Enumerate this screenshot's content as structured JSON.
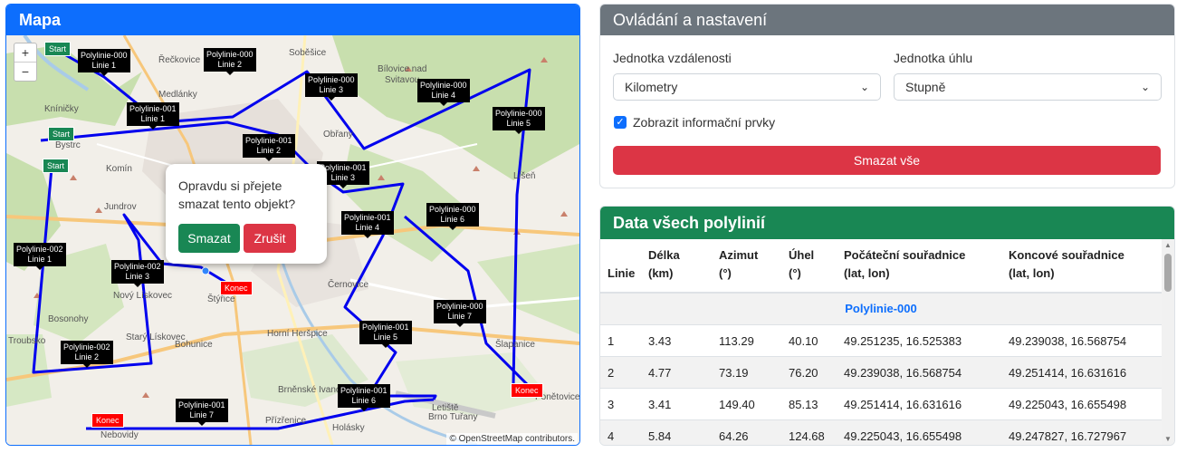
{
  "map": {
    "title": "Mapa",
    "zoom_in": "+",
    "zoom_out": "−",
    "attribution": "© OpenStreetMap contributors.",
    "places": [
      "Řečkovice",
      "Soběšice",
      "Bílovice nad Svitavou",
      "Medlánky",
      "Kníničky",
      "Bystrc",
      "Komín",
      "Jundrov",
      "Obřany",
      "Líšeň",
      "Nový Lískovec",
      "Bosonohy",
      "Troubsko",
      "Bohunice",
      "Horní Heršpice",
      "Černovice",
      "Šlapanice",
      "Brněnské Ivanovice",
      "Přízřenice",
      "Holásky",
      "Nebovidy",
      "Ponětovice",
      "Štýřice",
      "Starý Lískovec",
      "Letiště Brno Tuřany"
    ],
    "labels": [
      {
        "l1": "Polylinie-000",
        "l2": "Linie 1"
      },
      {
        "l1": "Polylinie-000",
        "l2": "Linie 2"
      },
      {
        "l1": "Polylinie-000",
        "l2": "Linie 3"
      },
      {
        "l1": "Polylinie-000",
        "l2": "Linie 4"
      },
      {
        "l1": "Polylinie-000",
        "l2": "Linie 5"
      },
      {
        "l1": "Polylinie-000",
        "l2": "Linie 6"
      },
      {
        "l1": "Polylinie-000",
        "l2": "Linie 7"
      },
      {
        "l1": "Polylinie-001",
        "l2": "Linie 1"
      },
      {
        "l1": "Polylinie-001",
        "l2": "Linie 2"
      },
      {
        "l1": "Polylinie-001",
        "l2": "Linie 3"
      },
      {
        "l1": "Polylinie-001",
        "l2": "Linie 4"
      },
      {
        "l1": "Polylinie-001",
        "l2": "Linie 5"
      },
      {
        "l1": "Polylinie-001",
        "l2": "Linie 6"
      },
      {
        "l1": "Polylinie-001",
        "l2": "Linie 7"
      },
      {
        "l1": "Polylinie-002",
        "l2": "Linie 1"
      },
      {
        "l1": "Polylinie-002",
        "l2": "Linie 2"
      },
      {
        "l1": "Polylinie-002",
        "l2": "Linie 3"
      }
    ],
    "start_label": "Start",
    "end_label": "Konec",
    "popup": {
      "message": "Opravdu si přejete smazat tento objekt?",
      "confirm": "Smazat",
      "cancel": "Zrušit"
    }
  },
  "settings": {
    "title": "Ovládání a nastavení",
    "distance_label": "Jednotka vzdálenosti",
    "distance_value": "Kilometry",
    "angle_label": "Jednotka úhlu",
    "angle_value": "Stupně",
    "show_info_label": "Zobrazit informační prvky",
    "show_info_checked": true,
    "clear_all": "Smazat vše"
  },
  "table": {
    "title": "Data všech polylinií",
    "headers": {
      "line": "Linie",
      "length_1": "Délka",
      "length_2": "(km)",
      "azimuth_1": "Azimut",
      "azimuth_2": "(°)",
      "angle_1": "Úhel",
      "angle_2": "(°)",
      "start_1": "Počáteční souřadnice",
      "start_2": "(lat, lon)",
      "end_1": "Koncové souřadnice",
      "end_2": "(lat, lon)"
    },
    "group": "Polylinie-000",
    "rows": [
      {
        "line": "1",
        "length": "3.43",
        "azimuth": "113.29",
        "angle": "40.10",
        "start": "49.251235, 16.525383",
        "end": "49.239038, 16.568754"
      },
      {
        "line": "2",
        "length": "4.77",
        "azimuth": "73.19",
        "angle": "76.20",
        "start": "49.239038, 16.568754",
        "end": "49.251414, 16.631616"
      },
      {
        "line": "3",
        "length": "3.41",
        "azimuth": "149.40",
        "angle": "85.13",
        "start": "49.251414, 16.631616",
        "end": "49.225043, 16.655498"
      },
      {
        "line": "4",
        "length": "5.84",
        "azimuth": "64.26",
        "angle": "124.68",
        "start": "49.225043, 16.655498",
        "end": "49.247827, 16.727967"
      }
    ]
  },
  "colors": {
    "primary": "#0d6efd",
    "success": "#198754",
    "danger": "#dc3545",
    "secondary": "#6c757d",
    "route": "#0000ee"
  }
}
